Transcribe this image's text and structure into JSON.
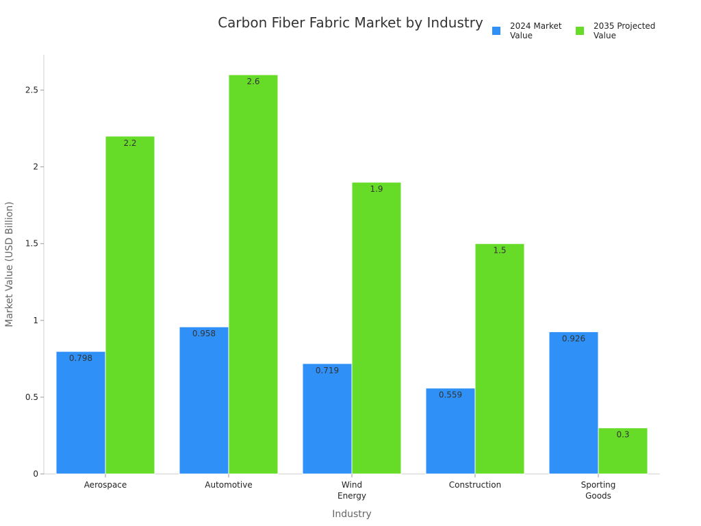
{
  "chart_data": {
    "type": "bar",
    "title": "Carbon Fiber Fabric Market by Industry",
    "xlabel": "Industry",
    "ylabel": "Market Value (USD Billion)",
    "categories": [
      [
        "Aerospace"
      ],
      [
        "Automotive"
      ],
      [
        "Wind",
        "Energy"
      ],
      [
        "Construction"
      ],
      [
        "Sporting",
        "Goods"
      ]
    ],
    "series": [
      {
        "name": [
          "2024 Market",
          "Value"
        ],
        "color": "#2f91f7",
        "values": [
          0.798,
          0.958,
          0.719,
          0.559,
          0.926
        ]
      },
      {
        "name": [
          "2035 Projected",
          "Value"
        ],
        "color": "#66db28",
        "values": [
          2.2,
          2.6,
          1.9,
          1.5,
          0.3
        ]
      }
    ],
    "ylim": [
      0,
      2.73
    ],
    "yticks": [
      0,
      0.5,
      1,
      1.5,
      2,
      2.5
    ],
    "ytick_labels": [
      "0",
      "0.5",
      "1",
      "1.5",
      "2",
      "2.5"
    ],
    "legend_position": "top-right",
    "grid": false
  }
}
